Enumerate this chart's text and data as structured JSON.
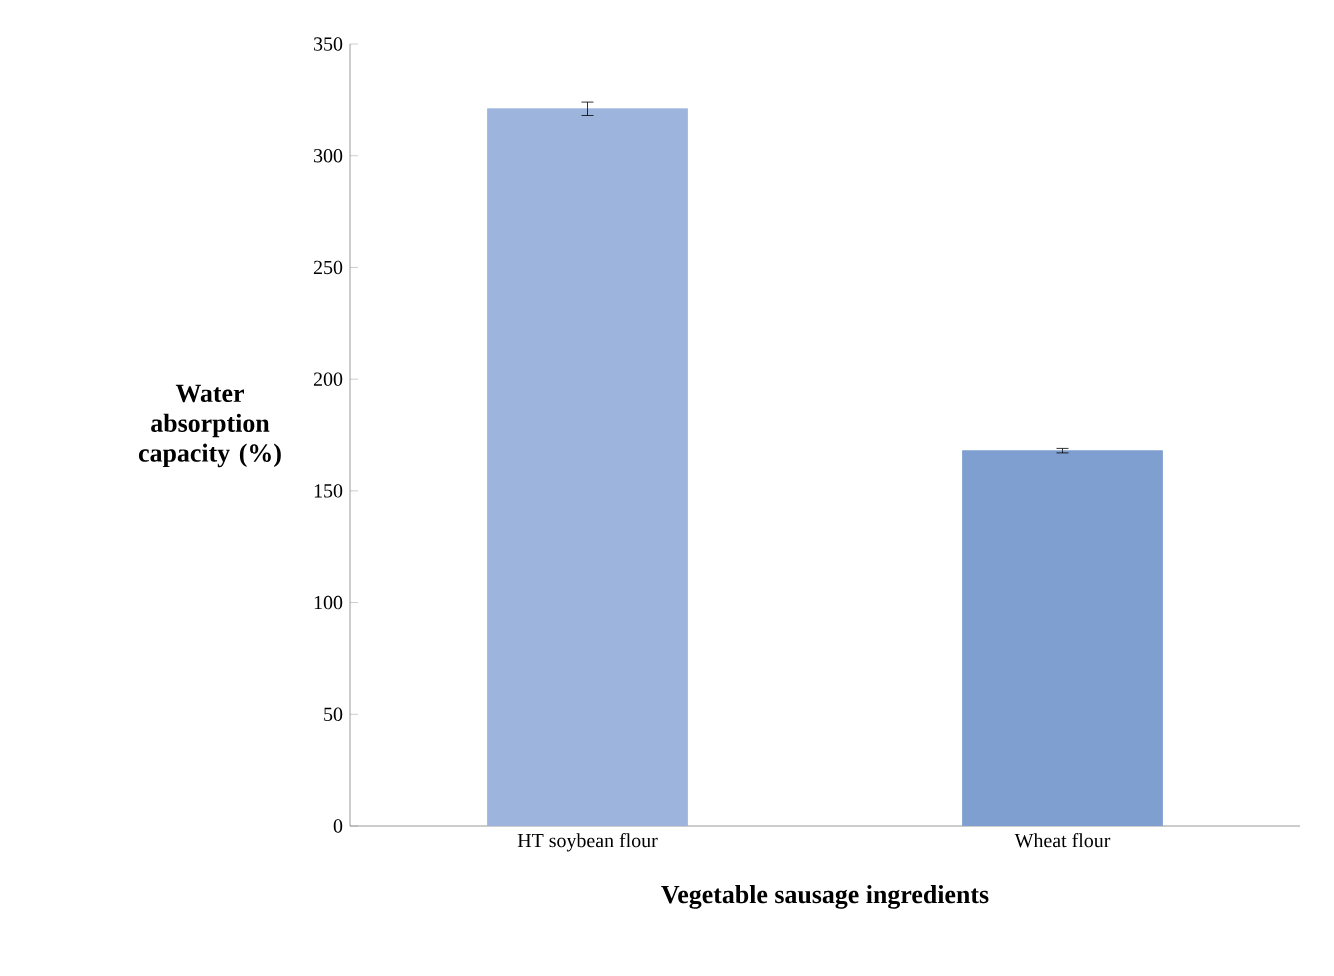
{
  "chart_data": {
    "type": "bar",
    "xlabel": "Vegetable sausage ingredients",
    "ylabel": "Water absorption capacity (%)",
    "categories": [
      "HT soybean flour",
      "Wheat flour"
    ],
    "values": [
      321,
      168
    ],
    "errors": [
      3,
      1
    ],
    "colors": [
      "#9db5dc",
      "#7f9fd0"
    ],
    "ylim": [
      0,
      350
    ],
    "yticks": [
      0,
      50,
      100,
      150,
      200,
      250,
      300,
      350
    ],
    "grid": false
  }
}
